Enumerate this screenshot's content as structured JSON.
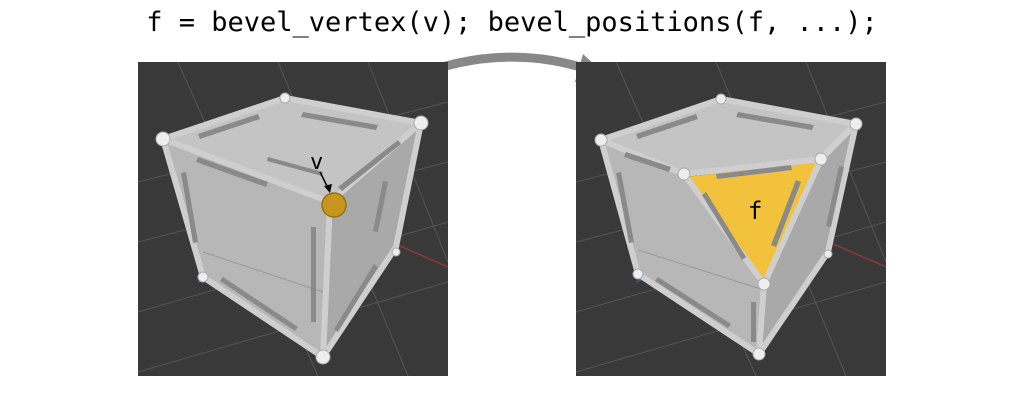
{
  "header": {
    "code": "f = bevel_vertex(v); bevel_positions(f, ...);"
  },
  "left_view": {
    "vertex_label": "v"
  },
  "right_view": {
    "face_label": "f"
  },
  "colors": {
    "viewport_bg": "#393939",
    "grid_line": "#555555",
    "cube_face": "#bdbdbd",
    "edge_tube": "#c9c9c9",
    "selected_vertex": "#c8961e",
    "new_face": "#f3c23c",
    "flow_arrow": "#8c8c8c"
  }
}
